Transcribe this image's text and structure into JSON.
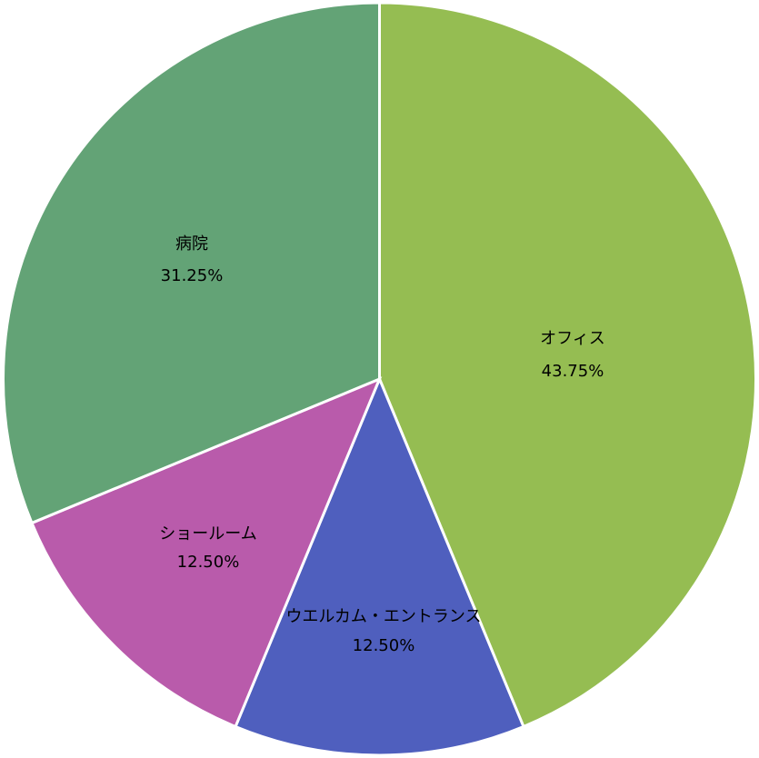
{
  "chart_data": {
    "type": "pie",
    "slices": [
      {
        "label": "オフィス",
        "value_label": "43.75%",
        "value": 43.75,
        "color": "#95bd52"
      },
      {
        "label": "ウエルカム・エントランス",
        "value_label": "12.50%",
        "value": 12.5,
        "color": "#4f5fbe"
      },
      {
        "label": "ショールーム",
        "value_label": "12.50%",
        "value": 12.5,
        "color": "#b95bab"
      },
      {
        "label": "病院",
        "value_label": "31.25%",
        "value": 31.25,
        "color": "#63a376"
      }
    ],
    "legend": "none"
  }
}
